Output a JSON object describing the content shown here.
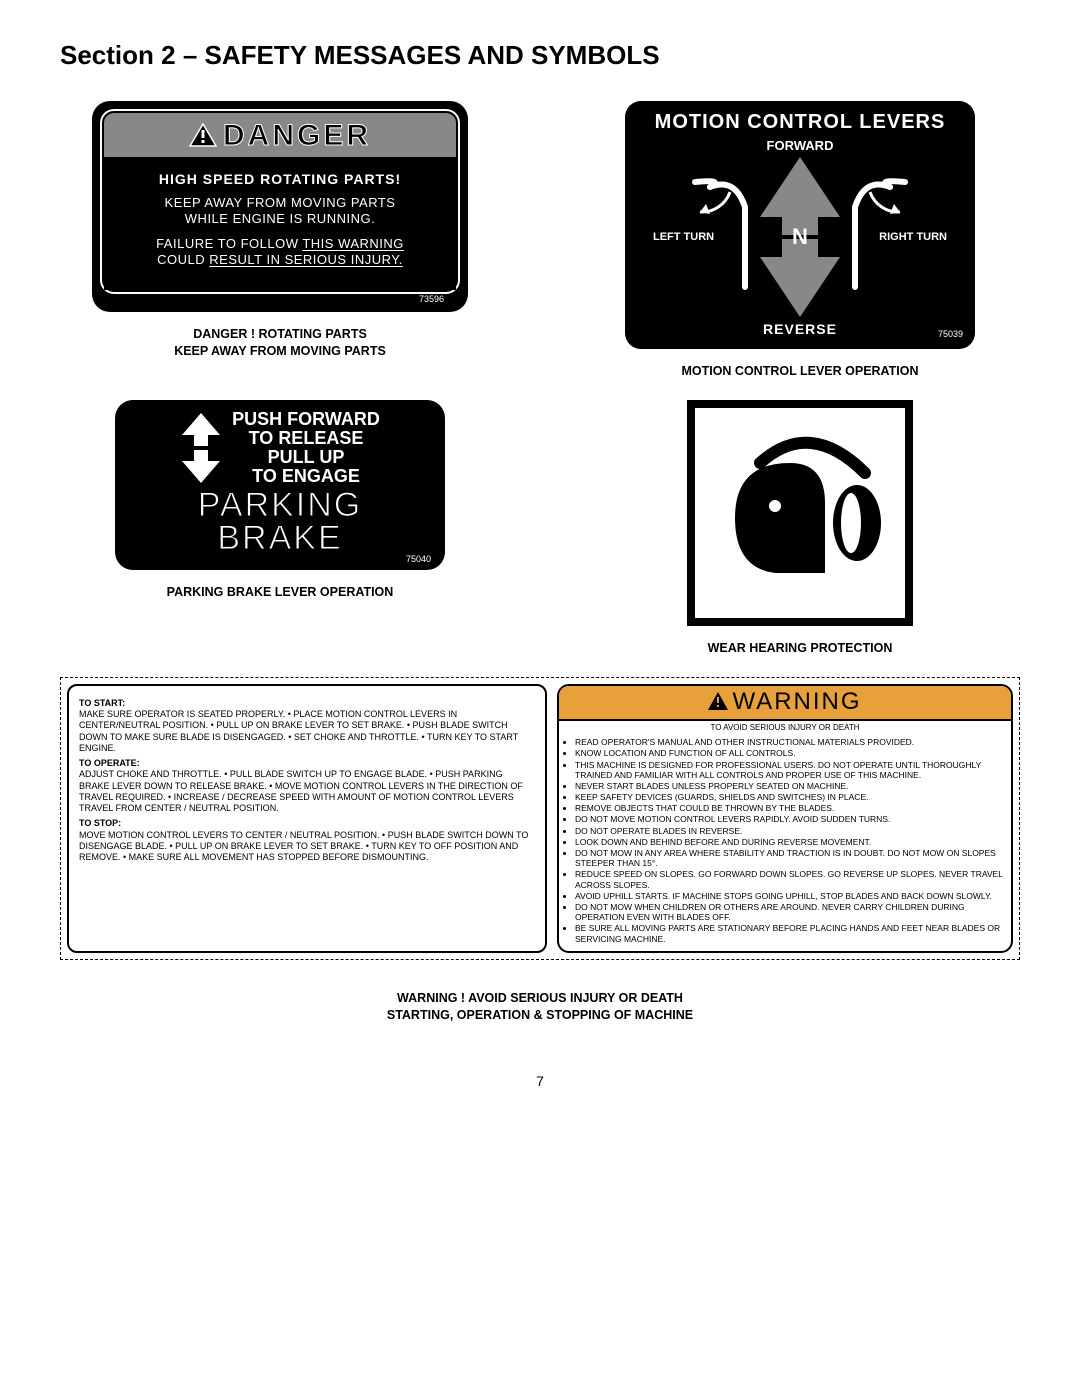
{
  "page_title": "Section 2 – SAFETY MESSAGES AND SYMBOLS",
  "page_number": "7",
  "danger": {
    "header": "DANGER",
    "line1": "HIGH SPEED ROTATING PARTS!",
    "line2a": "KEEP AWAY FROM MOVING PARTS",
    "line2b": "WHILE ENGINE IS RUNNING.",
    "line3a": "FAILURE TO FOLLOW THIS WARNING",
    "line3b": "COULD RESULT IN SERIOUS INJURY.",
    "part": "73596",
    "caption": "DANGER !  ROTATING PARTS\nKEEP AWAY FROM MOVING PARTS"
  },
  "motion": {
    "title": "MOTION CONTROL LEVERS",
    "forward": "FORWARD",
    "reverse": "REVERSE",
    "left": "LEFT\nTURN",
    "right": "RIGHT\nTURN",
    "neutral": "N",
    "part": "75039",
    "caption": "MOTION CONTROL LEVER OPERATION"
  },
  "brake": {
    "top1": "PUSH FORWARD",
    "top2": "TO RELEASE",
    "top3": "PULL UP",
    "top4": "TO ENGAGE",
    "main1": "PARKING",
    "main2": "BRAKE",
    "part": "75040",
    "caption": "PARKING BRAKE LEVER OPERATION"
  },
  "hearing": {
    "caption": "WEAR HEARING PROTECTION"
  },
  "procedure": {
    "start_h": "TO START:",
    "start": "MAKE SURE OPERATOR IS SEATED PROPERLY.  •  PLACE MOTION CONTROL LEVERS IN CENTER/NEUTRAL POSITION.  •  PULL UP ON BRAKE LEVER TO SET BRAKE.  •  PUSH BLADE SWITCH DOWN TO MAKE SURE BLADE IS DISENGAGED.  •  SET CHOKE AND THROTTLE.  •  TURN KEY TO START ENGINE.",
    "operate_h": "TO OPERATE:",
    "operate": "ADJUST CHOKE AND THROTTLE.  •  PULL BLADE SWITCH UP TO ENGAGE BLADE.  •  PUSH PARKING BRAKE LEVER DOWN TO RELEASE BRAKE.  •  MOVE MOTION CONTROL LEVERS IN THE DIRECTION OF TRAVEL REQUIRED.  •  INCREASE  /  DECREASE SPEED WITH AMOUNT OF MOTION CONTROL LEVERS TRAVEL FROM CENTER  /  NEUTRAL POSITION.",
    "stop_h": "TO STOP:",
    "stop": "MOVE MOTION CONTROL LEVERS TO CENTER  /  NEUTRAL POSITION.  •  PUSH BLADE SWITCH DOWN TO DISENGAGE BLADE.  •  PULL UP ON BRAKE LEVER TO SET BRAKE.  •  TURN KEY TO OFF POSITION AND REMOVE.  •  MAKE SURE ALL MOVEMENT HAS STOPPED BEFORE DISMOUNTING."
  },
  "warning": {
    "header": "WARNING",
    "sub": "TO AVOID SERIOUS INJURY OR DEATH",
    "items": [
      "READ OPERATOR'S MANUAL AND OTHER INSTRUCTIONAL MATERIALS PROVIDED.",
      "KNOW LOCATION AND FUNCTION OF ALL CONTROLS.",
      "THIS MACHINE IS DESIGNED FOR PROFESSIONAL USERS. DO NOT OPERATE UNTIL THOROUGHLY TRAINED AND FAMILIAR WITH ALL CONTROLS AND PROPER USE OF THIS MACHINE.",
      "NEVER START BLADES UNLESS PROPERLY SEATED ON MACHINE.",
      "KEEP SAFETY DEVICES (GUARDS, SHIELDS AND SWITCHES) IN PLACE.",
      "REMOVE OBJECTS THAT COULD BE THROWN BY THE BLADES.",
      "DO NOT MOVE MOTION CONTROL LEVERS RAPIDLY. AVOID SUDDEN TURNS.",
      "DO NOT OPERATE BLADES IN REVERSE.",
      "LOOK DOWN AND BEHIND BEFORE AND DURING REVERSE MOVEMENT.",
      "DO NOT MOW IN ANY AREA WHERE STABILITY AND TRACTION IS IN DOUBT. DO NOT MOW ON SLOPES STEEPER THAN 15°.",
      "REDUCE SPEED ON SLOPES. GO FORWARD DOWN SLOPES. GO REVERSE UP SLOPES. NEVER TRAVEL ACROSS SLOPES.",
      "AVOID UPHILL STARTS. IF MACHINE STOPS GOING UPHILL, STOP BLADES AND BACK DOWN SLOWLY.",
      "DO NOT MOW WHEN CHILDREN OR OTHERS ARE AROUND. NEVER CARRY CHILDREN DURING OPERATION EVEN WITH BLADES OFF.",
      "BE SURE ALL MOVING PARTS ARE STATIONARY BEFORE PLACING HANDS AND FEET NEAR BLADES OR SERVICING MACHINE."
    ]
  },
  "lower_caption": "WARNING ! AVOID SERIOUS INJURY OR DEATH\nSTARTING, OPERATION & STOPPING OF MACHINE",
  "colors": {
    "warning_bar": "#e8a03a",
    "danger_header_bg": "#888888"
  }
}
